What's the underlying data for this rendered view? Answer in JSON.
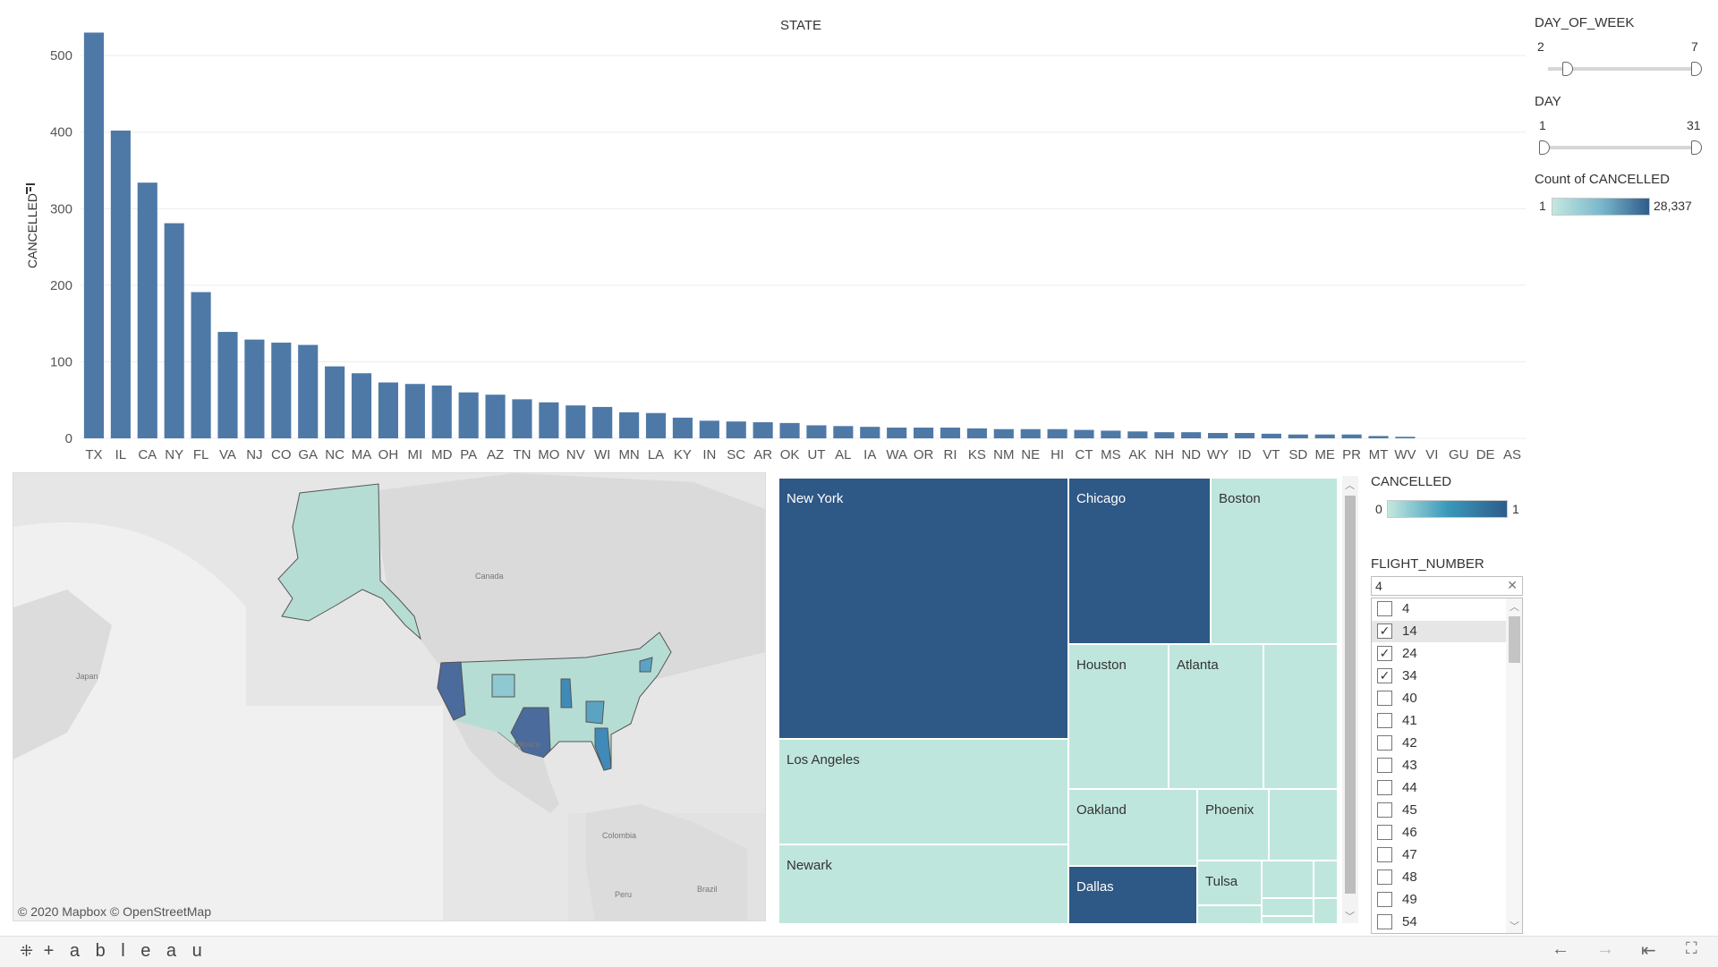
{
  "chart_data": {
    "type": "bar",
    "title": "STATE",
    "xlabel": "",
    "ylabel": "CANCELLED",
    "ylim": [
      0,
      520
    ],
    "yticks": [
      0,
      100,
      200,
      300,
      400,
      500
    ],
    "bar_color": "#4e79a7",
    "categories": [
      "TX",
      "IL",
      "CA",
      "NY",
      "FL",
      "VA",
      "NJ",
      "CO",
      "GA",
      "NC",
      "MA",
      "OH",
      "MI",
      "MD",
      "PA",
      "AZ",
      "TN",
      "MO",
      "NV",
      "WI",
      "MN",
      "LA",
      "KY",
      "IN",
      "SC",
      "AR",
      "OK",
      "UT",
      "AL",
      "IA",
      "WA",
      "OR",
      "RI",
      "KS",
      "NM",
      "NE",
      "HI",
      "CT",
      "MS",
      "AK",
      "NH",
      "ND",
      "WY",
      "ID",
      "VT",
      "SD",
      "ME",
      "PR",
      "MT",
      "WV",
      "VI",
      "GU",
      "DE",
      "AS"
    ],
    "values": [
      530,
      402,
      334,
      281,
      191,
      139,
      129,
      125,
      122,
      94,
      85,
      73,
      71,
      69,
      60,
      57,
      51,
      47,
      43,
      41,
      34,
      33,
      27,
      23,
      22,
      21,
      20,
      17,
      16,
      15,
      14,
      14,
      14,
      13,
      12,
      12,
      12,
      11,
      10,
      9,
      8,
      8,
      7,
      7,
      6,
      5,
      5,
      5,
      3,
      2,
      0,
      0,
      0,
      0
    ]
  },
  "filters": {
    "day_of_week": {
      "label": "DAY_OF_WEEK",
      "min": "2",
      "max": "7"
    },
    "day": {
      "label": "DAY",
      "min": "1",
      "max": "31"
    },
    "count_legend": {
      "label": "Count of CANCELLED",
      "min": "1",
      "max": "28,337"
    },
    "cancelled_legend": {
      "label": "CANCELLED",
      "min": "0",
      "max": "1"
    },
    "flight_number": {
      "label": "FLIGHT_NUMBER",
      "search_value": "4",
      "items": [
        {
          "label": "4",
          "checked": false
        },
        {
          "label": "14",
          "checked": true
        },
        {
          "label": "24",
          "checked": true
        },
        {
          "label": "34",
          "checked": true
        },
        {
          "label": "40",
          "checked": false
        },
        {
          "label": "41",
          "checked": false
        },
        {
          "label": "42",
          "checked": false
        },
        {
          "label": "43",
          "checked": false
        },
        {
          "label": "44",
          "checked": false
        },
        {
          "label": "45",
          "checked": false
        },
        {
          "label": "46",
          "checked": false
        },
        {
          "label": "47",
          "checked": false
        },
        {
          "label": "48",
          "checked": false
        },
        {
          "label": "49",
          "checked": false
        },
        {
          "label": "54",
          "checked": false
        }
      ]
    }
  },
  "map": {
    "labels": {
      "canada": "Canada",
      "mexico": "Mexico",
      "japan": "Japan",
      "colombia": "Colombia",
      "peru": "Peru",
      "brazil": "Brazil"
    },
    "attribution": "© 2020 Mapbox © OpenStreetMap"
  },
  "treemap": {
    "cells": [
      {
        "label": "New York",
        "shade": "dark"
      },
      {
        "label": "Chicago",
        "shade": "dark"
      },
      {
        "label": "Boston",
        "shade": "light"
      },
      {
        "label": "Houston",
        "shade": "light"
      },
      {
        "label": "Atlanta",
        "shade": "light"
      },
      {
        "label": "Los Angeles",
        "shade": "light"
      },
      {
        "label": "Oakland",
        "shade": "light"
      },
      {
        "label": "Phoenix",
        "shade": "light"
      },
      {
        "label": "Newark",
        "shade": "light"
      },
      {
        "label": "Dallas",
        "shade": "dark"
      },
      {
        "label": "Tulsa",
        "shade": "light"
      }
    ]
  },
  "footer": {
    "logo": "+ a b l e a u"
  },
  "colors": {
    "dark": "#2e5885",
    "light": "#bfe6dc",
    "bar": "#4e79a7",
    "gradient_start": "#c3e8e0",
    "gradient_end": "#2f5c8b"
  }
}
